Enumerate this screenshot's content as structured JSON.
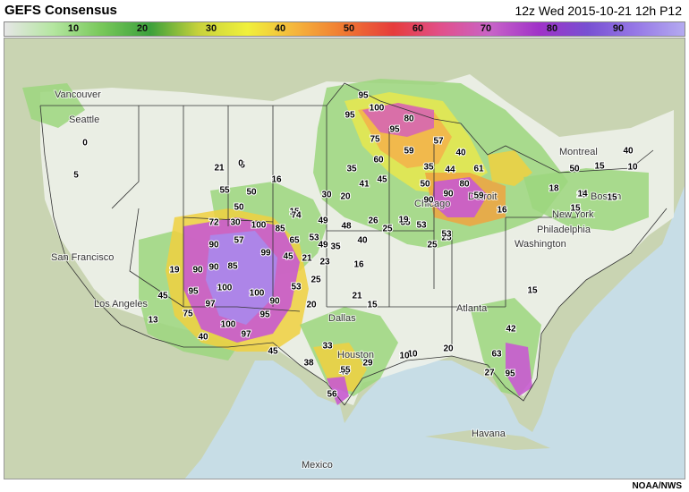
{
  "header": {
    "title": "GEFS Consensus",
    "run_info": "12z Wed 2015-10-21 12h P12"
  },
  "legend": {
    "labels": [
      "10",
      "20",
      "30",
      "40",
      "50",
      "60",
      "70",
      "80",
      "90"
    ],
    "colors": [
      "#e6e6e6",
      "#b4e6a0",
      "#78c85a",
      "#3ca03c",
      "#c8d23c",
      "#f0f03c",
      "#f5b43c",
      "#f07832",
      "#e63c3c",
      "#e1508c",
      "#c864c8",
      "#a032c8",
      "#7850d2",
      "#9678e6",
      "#b4aaf0"
    ]
  },
  "map": {
    "cities": [
      "Vancouver",
      "Seattle",
      "San Francisco",
      "Los Angeles",
      "Dallas",
      "Houston",
      "Atlanta",
      "Washington",
      "Philadelphia",
      "New York",
      "Boston",
      "Montreal",
      "Chicago",
      "Detroit",
      "Havana",
      "Mexico"
    ],
    "values": [
      {
        "v": "95"
      },
      {
        "v": "95"
      },
      {
        "v": "100"
      },
      {
        "v": "80"
      },
      {
        "v": "95"
      },
      {
        "v": "75"
      },
      {
        "v": "57"
      },
      {
        "v": "60"
      },
      {
        "v": "59"
      },
      {
        "v": "35"
      },
      {
        "v": "35"
      },
      {
        "v": "40"
      },
      {
        "v": "44"
      },
      {
        "v": "61"
      },
      {
        "v": "41"
      },
      {
        "v": "45"
      },
      {
        "v": "50"
      },
      {
        "v": "80"
      },
      {
        "v": "90"
      },
      {
        "v": "90"
      },
      {
        "v": "59"
      },
      {
        "v": "53"
      },
      {
        "v": "25"
      },
      {
        "v": "35"
      },
      {
        "v": "25"
      },
      {
        "v": "19"
      },
      {
        "v": "53"
      },
      {
        "v": "26"
      },
      {
        "v": "20"
      },
      {
        "v": "30"
      },
      {
        "v": "15"
      },
      {
        "v": "16"
      },
      {
        "v": "5"
      },
      {
        "v": "0"
      },
      {
        "v": "21"
      },
      {
        "v": "55"
      },
      {
        "v": "50"
      },
      {
        "v": "50"
      },
      {
        "v": "72"
      },
      {
        "v": "30"
      },
      {
        "v": "100"
      },
      {
        "v": "85"
      },
      {
        "v": "74"
      },
      {
        "v": "49"
      },
      {
        "v": "48"
      },
      {
        "v": "40"
      },
      {
        "v": "90"
      },
      {
        "v": "57"
      },
      {
        "v": "99"
      },
      {
        "v": "65"
      },
      {
        "v": "53"
      },
      {
        "v": "35"
      },
      {
        "v": "49"
      },
      {
        "v": "25"
      },
      {
        "v": "90"
      },
      {
        "v": "85"
      },
      {
        "v": "45"
      },
      {
        "v": "21"
      },
      {
        "v": "23"
      },
      {
        "v": "16"
      },
      {
        "v": "19"
      },
      {
        "v": "90"
      },
      {
        "v": "95"
      },
      {
        "v": "100"
      },
      {
        "v": "100"
      },
      {
        "v": "53"
      },
      {
        "v": "25"
      },
      {
        "v": "45"
      },
      {
        "v": "97"
      },
      {
        "v": "90"
      },
      {
        "v": "75"
      },
      {
        "v": "100"
      },
      {
        "v": "95"
      },
      {
        "v": "40"
      },
      {
        "v": "97"
      },
      {
        "v": "45"
      },
      {
        "v": "13"
      },
      {
        "v": "20"
      },
      {
        "v": "21"
      },
      {
        "v": "15"
      },
      {
        "v": "33"
      },
      {
        "v": "38"
      },
      {
        "v": "40"
      },
      {
        "v": "55"
      },
      {
        "v": "29"
      },
      {
        "v": "56"
      },
      {
        "v": "10"
      },
      {
        "v": "20"
      },
      {
        "v": "63"
      },
      {
        "v": "42"
      },
      {
        "v": "27"
      },
      {
        "v": "95"
      },
      {
        "v": "18"
      },
      {
        "v": "15"
      },
      {
        "v": "15"
      },
      {
        "v": "14"
      },
      {
        "v": "50"
      },
      {
        "v": "15"
      },
      {
        "v": "10"
      },
      {
        "v": "40"
      },
      {
        "v": "16"
      },
      {
        "v": "15"
      },
      {
        "v": "15"
      },
      {
        "v": "10"
      },
      {
        "v": "0"
      },
      {
        "v": "5"
      }
    ]
  },
  "footer": {
    "credit": "NOAA/NWS"
  }
}
